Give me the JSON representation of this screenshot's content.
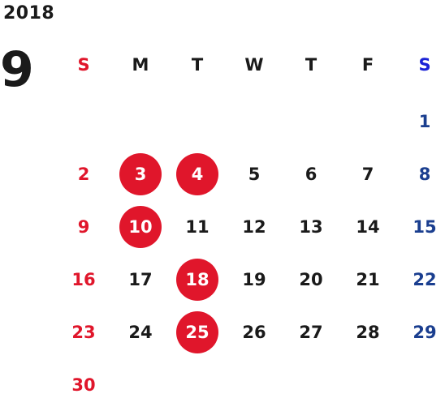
{
  "year": "2018",
  "month": "9",
  "weekdays": [
    "S",
    "M",
    "T",
    "W",
    "T",
    "F",
    "S"
  ],
  "weeks": [
    [
      "",
      "",
      "",
      "",
      "",
      "",
      "1"
    ],
    [
      "2",
      "3",
      "4",
      "5",
      "6",
      "7",
      "8"
    ],
    [
      "9",
      "10",
      "11",
      "12",
      "13",
      "14",
      "15"
    ],
    [
      "16",
      "17",
      "18",
      "19",
      "20",
      "21",
      "22"
    ],
    [
      "23",
      "24",
      "25",
      "26",
      "27",
      "28",
      "29"
    ],
    [
      "30",
      "",
      "",
      "",
      "",
      "",
      ""
    ]
  ],
  "highlighted_days": [
    "3",
    "4",
    "10",
    "18",
    "25"
  ],
  "colors": {
    "sunday": "#e0162b",
    "saturday": "#1a3e8f",
    "saturday_header": "#1a22d6",
    "highlight": "#e0162b",
    "text": "#1a1a1a"
  }
}
